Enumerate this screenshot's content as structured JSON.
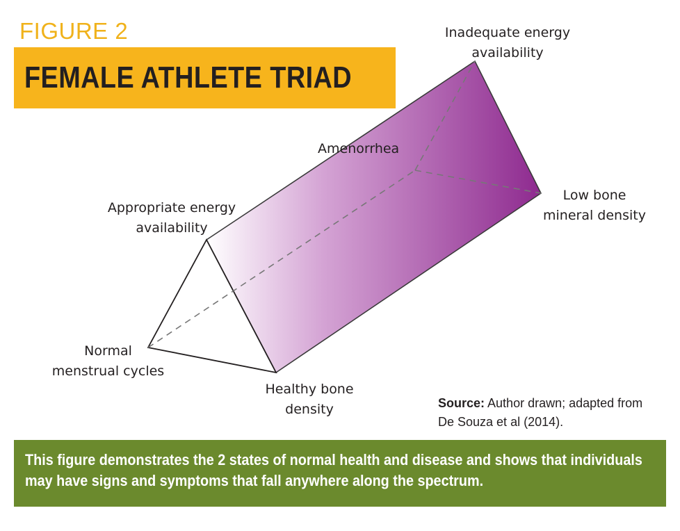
{
  "figure_label": "FIGURE 2",
  "title": "FEMALE ATHLETE TRIAD",
  "nodes": {
    "inadequate_energy": "Inadequate energy\navailability",
    "amenorrhea": "Amenorrhea",
    "low_bone": "Low bone\nmineral density",
    "appropriate_energy": "Appropriate energy\navailability",
    "normal_cycles": "Normal\nmenstrual cycles",
    "healthy_bone": "Healthy bone\ndensity"
  },
  "source": {
    "label": "Source:",
    "text": " Author drawn; adapted from De Souza et al (2014)."
  },
  "caption": "This figure demonstrates the 2 states of normal health and disease and shows that individuals may have signs and symptoms that fall anywhere along the spectrum.",
  "colors": {
    "title_bg": "#f7b41c",
    "caption_bg": "#6b8a2d",
    "prism_purple": "#8e2a8f"
  }
}
